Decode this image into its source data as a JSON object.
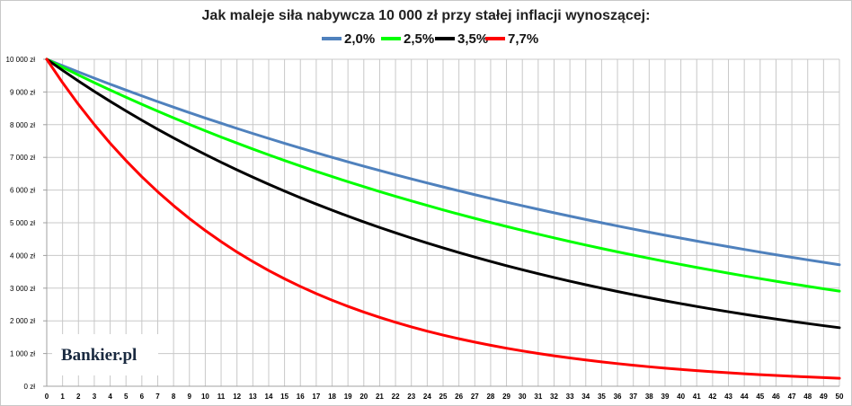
{
  "chart_data": {
    "type": "line",
    "title": "Jak maleje siła nabywcza 10 000 zł przy stałej inflacji wynoszącej:",
    "xlabel": "",
    "ylabel": "",
    "x": [
      0,
      1,
      2,
      3,
      4,
      5,
      6,
      7,
      8,
      9,
      10,
      11,
      12,
      13,
      14,
      15,
      16,
      17,
      18,
      19,
      20,
      21,
      22,
      23,
      24,
      25,
      26,
      27,
      28,
      29,
      30,
      31,
      32,
      33,
      34,
      35,
      36,
      37,
      38,
      39,
      40,
      41,
      42,
      43,
      44,
      45,
      46,
      47,
      48,
      49,
      50
    ],
    "xlim": [
      0,
      50
    ],
    "ylim": [
      0,
      10000
    ],
    "y_ticks": [
      {
        "value": 0,
        "label": "0 zł"
      },
      {
        "value": 1000,
        "label": "1 000 zł"
      },
      {
        "value": 2000,
        "label": "2 000 zł"
      },
      {
        "value": 3000,
        "label": "3 000 zł"
      },
      {
        "value": 4000,
        "label": "4 000 zł"
      },
      {
        "value": 5000,
        "label": "5 000 zł"
      },
      {
        "value": 6000,
        "label": "6 000 zł"
      },
      {
        "value": 7000,
        "label": "7 000 zł"
      },
      {
        "value": 8000,
        "label": "8 000 zł"
      },
      {
        "value": 9000,
        "label": "9 000 zł"
      },
      {
        "value": 10000,
        "label": "10 000 zł"
      }
    ],
    "grid": true,
    "legend_position": "top-center",
    "series": [
      {
        "name": "2,0%",
        "color": "#4f81bd",
        "values": [
          10000,
          9804,
          9612,
          9423,
          9238,
          9057,
          8880,
          8706,
          8535,
          8368,
          8203,
          8043,
          7885,
          7730,
          7579,
          7430,
          7284,
          7142,
          7002,
          6864,
          6730,
          6598,
          6468,
          6342,
          6217,
          6095,
          5976,
          5859,
          5744,
          5631,
          5521,
          5412,
          5306,
          5202,
          5100,
          5000,
          4902,
          4806,
          4712,
          4619,
          4529,
          4440,
          4353,
          4268,
          4184,
          4102,
          4022,
          3943,
          3865,
          3790,
          3715
        ]
      },
      {
        "name": "2,5%",
        "color": "#00ff00",
        "values": [
          10000,
          9756,
          9518,
          9286,
          9060,
          8839,
          8623,
          8413,
          8207,
          8007,
          7812,
          7621,
          7436,
          7254,
          7077,
          6905,
          6736,
          6572,
          6412,
          6255,
          6103,
          5954,
          5809,
          5667,
          5529,
          5394,
          5262,
          5134,
          5009,
          4887,
          4767,
          4651,
          4538,
          4427,
          4319,
          4214,
          4111,
          4011,
          3913,
          3817,
          3724,
          3633,
          3545,
          3458,
          3374,
          3292,
          3211,
          3133,
          3057,
          2982,
          2909
        ]
      },
      {
        "name": "3,5%",
        "color": "#000000",
        "values": [
          10000,
          9662,
          9335,
          9019,
          8714,
          8420,
          8135,
          7860,
          7594,
          7337,
          7089,
          6849,
          6618,
          6394,
          6178,
          5969,
          5767,
          5572,
          5384,
          5202,
          5026,
          4856,
          4692,
          4533,
          4380,
          4231,
          4088,
          3950,
          3817,
          3687,
          3563,
          3442,
          3326,
          3213,
          3105,
          3000,
          2898,
          2800,
          2706,
          2614,
          2526,
          2440,
          2358,
          2278,
          2201,
          2127,
          2055,
          1985,
          1918,
          1853,
          1791
        ]
      },
      {
        "name": "7,7%",
        "color": "#ff0000",
        "values": [
          10000,
          9285,
          8621,
          8005,
          7432,
          6901,
          6407,
          5949,
          5524,
          5129,
          4762,
          4422,
          4105,
          3812,
          3539,
          3286,
          3051,
          2833,
          2631,
          2443,
          2268,
          2106,
          1955,
          1815,
          1685,
          1565,
          1453,
          1349,
          1253,
          1163,
          1080,
          1003,
          931,
          865,
          803,
          745,
          692,
          642,
          596,
          554,
          514,
          477,
          443,
          412,
          382,
          355,
          330,
          306,
          284,
          264,
          245
        ]
      }
    ]
  },
  "branding": {
    "logo_text": "Bankier.pl"
  }
}
